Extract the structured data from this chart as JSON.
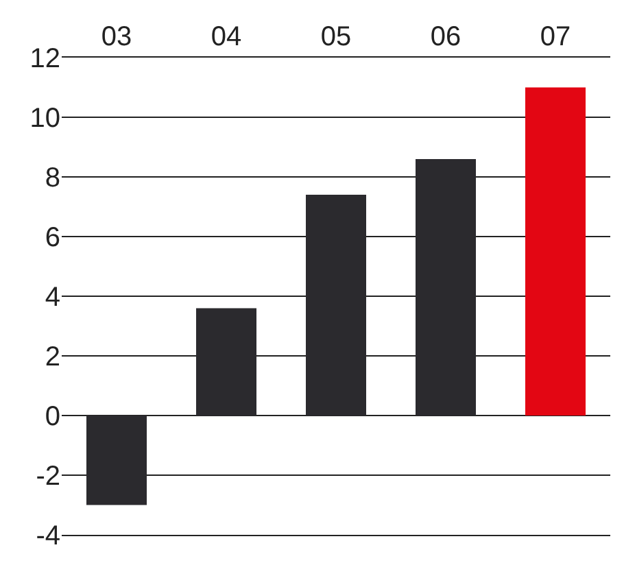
{
  "chart_data": {
    "type": "bar",
    "categories": [
      "03",
      "04",
      "05",
      "06",
      "07"
    ],
    "values": [
      -3,
      3.6,
      7.4,
      8.6,
      11
    ],
    "colors": [
      "#2b2a2e",
      "#2b2a2e",
      "#2b2a2e",
      "#2b2a2e",
      "#e30613"
    ],
    "ylim": [
      -4,
      12
    ],
    "yticks": [
      -4,
      -2,
      0,
      2,
      4,
      6,
      8,
      10,
      12
    ],
    "grid": "y"
  }
}
